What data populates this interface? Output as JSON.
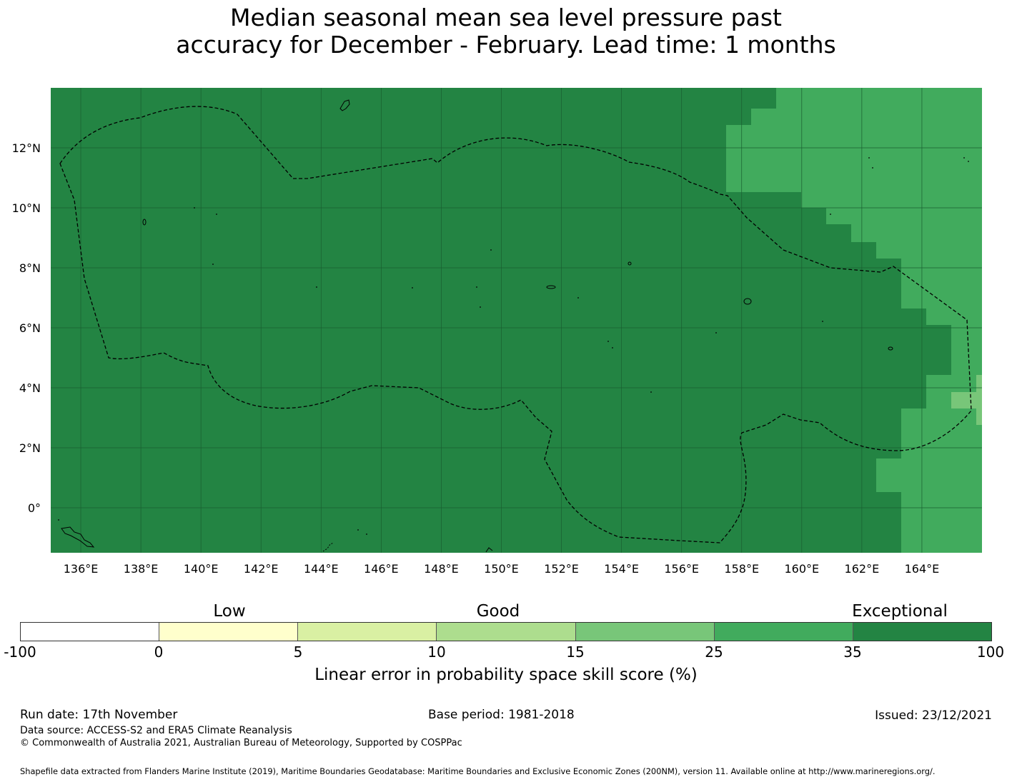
{
  "title": {
    "line1": "Median seasonal mean sea level pressure past",
    "line2": "accuracy for December - February. Lead time: 1 months"
  },
  "map": {
    "lon_labels": [
      "136°E",
      "138°E",
      "140°E",
      "142°E",
      "144°E",
      "146°E",
      "148°E",
      "150°E",
      "152°E",
      "154°E",
      "156°E",
      "158°E",
      "160°E",
      "162°E",
      "164°E"
    ],
    "lon_values": [
      136,
      138,
      140,
      142,
      144,
      146,
      148,
      150,
      152,
      154,
      156,
      158,
      160,
      162,
      164
    ],
    "lat_labels": [
      "12°N",
      "10°N",
      "8°N",
      "6°N",
      "4°N",
      "2°N",
      "0°"
    ],
    "lat_values": [
      12,
      10,
      8,
      6,
      4,
      2,
      0
    ],
    "lon_range": [
      135.0,
      166.0
    ],
    "lat_range": [
      -1.5,
      14.0
    ],
    "colors": {
      "exceptional": "#238443",
      "very_good": "#41ab5d",
      "good": "#78c679",
      "grid": "#1a5e30",
      "boundary": "#000000"
    }
  },
  "legend": {
    "categories": [
      "Low",
      "Good",
      "Exceptional"
    ],
    "ticks": [
      "-100",
      "0",
      "5",
      "10",
      "15",
      "25",
      "35",
      "100"
    ],
    "colors": [
      "#ffffff",
      "#ffffcc",
      "#d9f0a3",
      "#addd8e",
      "#78c679",
      "#41ab5d",
      "#238443"
    ],
    "label": "Linear error in probability space skill score (%)"
  },
  "footer": {
    "run_date": "Run date: 17th November",
    "base_period": "Base period: 1981-2018",
    "issued": "Issued: 23/12/2021",
    "data_source": "Data source: ACCESS-S2 and ERA5 Climate Reanalysis",
    "copyright": "© Commonwealth of Australia 2021, Australian Bureau of Meteorology, Supported by COSPPac",
    "shapefile": "Shapefile data extracted from Flanders Marine Institute (2019), Maritime Boundaries Geodatabase: Maritime Boundaries and Exclusive Economic Zones (200NM), version 11. Available online at http://www.marineregions.org/."
  }
}
